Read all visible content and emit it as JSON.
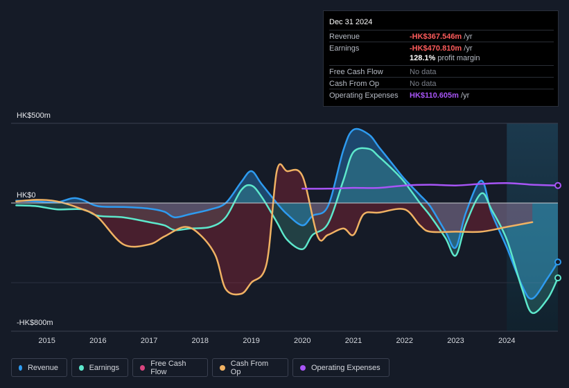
{
  "tooltip": {
    "date": "Dec 31 2024",
    "rows": [
      {
        "label": "Revenue",
        "value": "-HK$367.546m",
        "unit": " /yr",
        "color": "#ff5c5c"
      },
      {
        "label": "Earnings",
        "value": "-HK$470.810m",
        "unit": " /yr",
        "color": "#ff5c5c"
      },
      {
        "label": "Free Cash Flow",
        "value": "No data"
      },
      {
        "label": "Cash From Op",
        "value": "No data"
      },
      {
        "label": "Operating Expenses",
        "value": "HK$110.605m",
        "unit": " /yr",
        "color": "#a855f7"
      }
    ],
    "margin_value": "128.1%",
    "margin_label": " profit margin"
  },
  "legend": [
    {
      "label": "Revenue",
      "color": "#2e9bf0"
    },
    {
      "label": "Earnings",
      "color": "#5de8cc"
    },
    {
      "label": "Free Cash Flow",
      "color": "#d8457f"
    },
    {
      "label": "Cash From Op",
      "color": "#f0b263"
    },
    {
      "label": "Operating Expenses",
      "color": "#a855f7"
    }
  ],
  "chart_data": {
    "type": "line",
    "title": "",
    "xlabel": "",
    "ylabel": "",
    "units": "HK$m",
    "ylim": [
      -800,
      500
    ],
    "xlim": [
      2014.3,
      2025.0
    ],
    "y_tick_labels": [
      {
        "value": 500,
        "label": "HK$500m"
      },
      {
        "value": 0,
        "label": "HK$0"
      },
      {
        "value": -800,
        "label": "-HK$800m"
      }
    ],
    "x_ticks": [
      2015,
      2016,
      2017,
      2018,
      2019,
      2020,
      2021,
      2022,
      2023,
      2024
    ],
    "highlight_start": 2024.0,
    "series": [
      {
        "name": "Revenue",
        "color": "#2e9bf0",
        "x": [
          2014.4,
          2014.8,
          2015.2,
          2015.5,
          2015.7,
          2016.0,
          2016.5,
          2017.0,
          2017.3,
          2017.5,
          2017.8,
          2018.2,
          2018.5,
          2018.8,
          2019.0,
          2019.2,
          2019.5,
          2019.7,
          2020.0,
          2020.2,
          2020.5,
          2020.8,
          2021.0,
          2021.3,
          2021.5,
          2021.8,
          2022.0,
          2022.3,
          2022.5,
          2022.8,
          2023.0,
          2023.2,
          2023.5,
          2023.7,
          2024.0,
          2024.3,
          2024.5,
          2024.8,
          2025.0
        ],
        "values": [
          15,
          10,
          5,
          30,
          20,
          -20,
          -25,
          -35,
          -55,
          -90,
          -70,
          -40,
          0,
          130,
          200,
          120,
          0,
          -70,
          -140,
          -80,
          -20,
          330,
          460,
          430,
          350,
          230,
          150,
          50,
          -20,
          -180,
          -280,
          -60,
          140,
          -60,
          -280,
          -520,
          -600,
          -470,
          -370
        ]
      },
      {
        "name": "Earnings",
        "color": "#5de8cc",
        "x": [
          2014.4,
          2014.8,
          2015.2,
          2015.7,
          2016.0,
          2016.5,
          2017.0,
          2017.3,
          2017.5,
          2017.8,
          2018.2,
          2018.5,
          2018.8,
          2019.0,
          2019.2,
          2019.5,
          2019.7,
          2020.0,
          2020.2,
          2020.5,
          2020.8,
          2021.0,
          2021.3,
          2021.5,
          2021.8,
          2022.0,
          2022.3,
          2022.5,
          2022.8,
          2023.0,
          2023.2,
          2023.5,
          2023.7,
          2024.0,
          2024.3,
          2024.5,
          2024.8,
          2025.0
        ],
        "values": [
          -15,
          -20,
          -40,
          -40,
          -80,
          -90,
          -120,
          -140,
          -170,
          -160,
          -150,
          -90,
          80,
          110,
          40,
          -120,
          -230,
          -290,
          -200,
          -130,
          140,
          320,
          340,
          290,
          200,
          130,
          0,
          -80,
          -220,
          -330,
          -130,
          60,
          -40,
          -230,
          -540,
          -690,
          -600,
          -470
        ]
      },
      {
        "name": "Cash From Op",
        "color": "#f0b263",
        "x": [
          2014.4,
          2014.8,
          2015.2,
          2015.7,
          2016.0,
          2016.5,
          2017.0,
          2017.3,
          2017.7,
          2018.0,
          2018.3,
          2018.5,
          2018.8,
          2019.0,
          2019.3,
          2019.5,
          2019.7,
          2020.0,
          2020.3,
          2020.5,
          2020.8,
          2021.0,
          2021.2,
          2021.5,
          2022.0,
          2022.3,
          2022.5,
          2023.0,
          2023.5,
          2024.0,
          2024.5
        ],
        "values": [
          10,
          20,
          10,
          -40,
          -90,
          -260,
          -260,
          -210,
          -150,
          -200,
          -330,
          -540,
          -570,
          -500,
          -380,
          200,
          200,
          170,
          -210,
          -200,
          -160,
          -200,
          -70,
          -60,
          -40,
          -140,
          -180,
          -180,
          -180,
          -150,
          -120
        ]
      },
      {
        "name": "Operating Expenses",
        "color": "#a855f7",
        "x": [
          2020.0,
          2020.5,
          2021.0,
          2021.5,
          2022.0,
          2022.5,
          2023.0,
          2023.5,
          2024.0,
          2024.5,
          2025.0
        ],
        "values": [
          90,
          90,
          95,
          95,
          110,
          115,
          110,
          120,
          125,
          115,
          110
        ]
      }
    ]
  }
}
